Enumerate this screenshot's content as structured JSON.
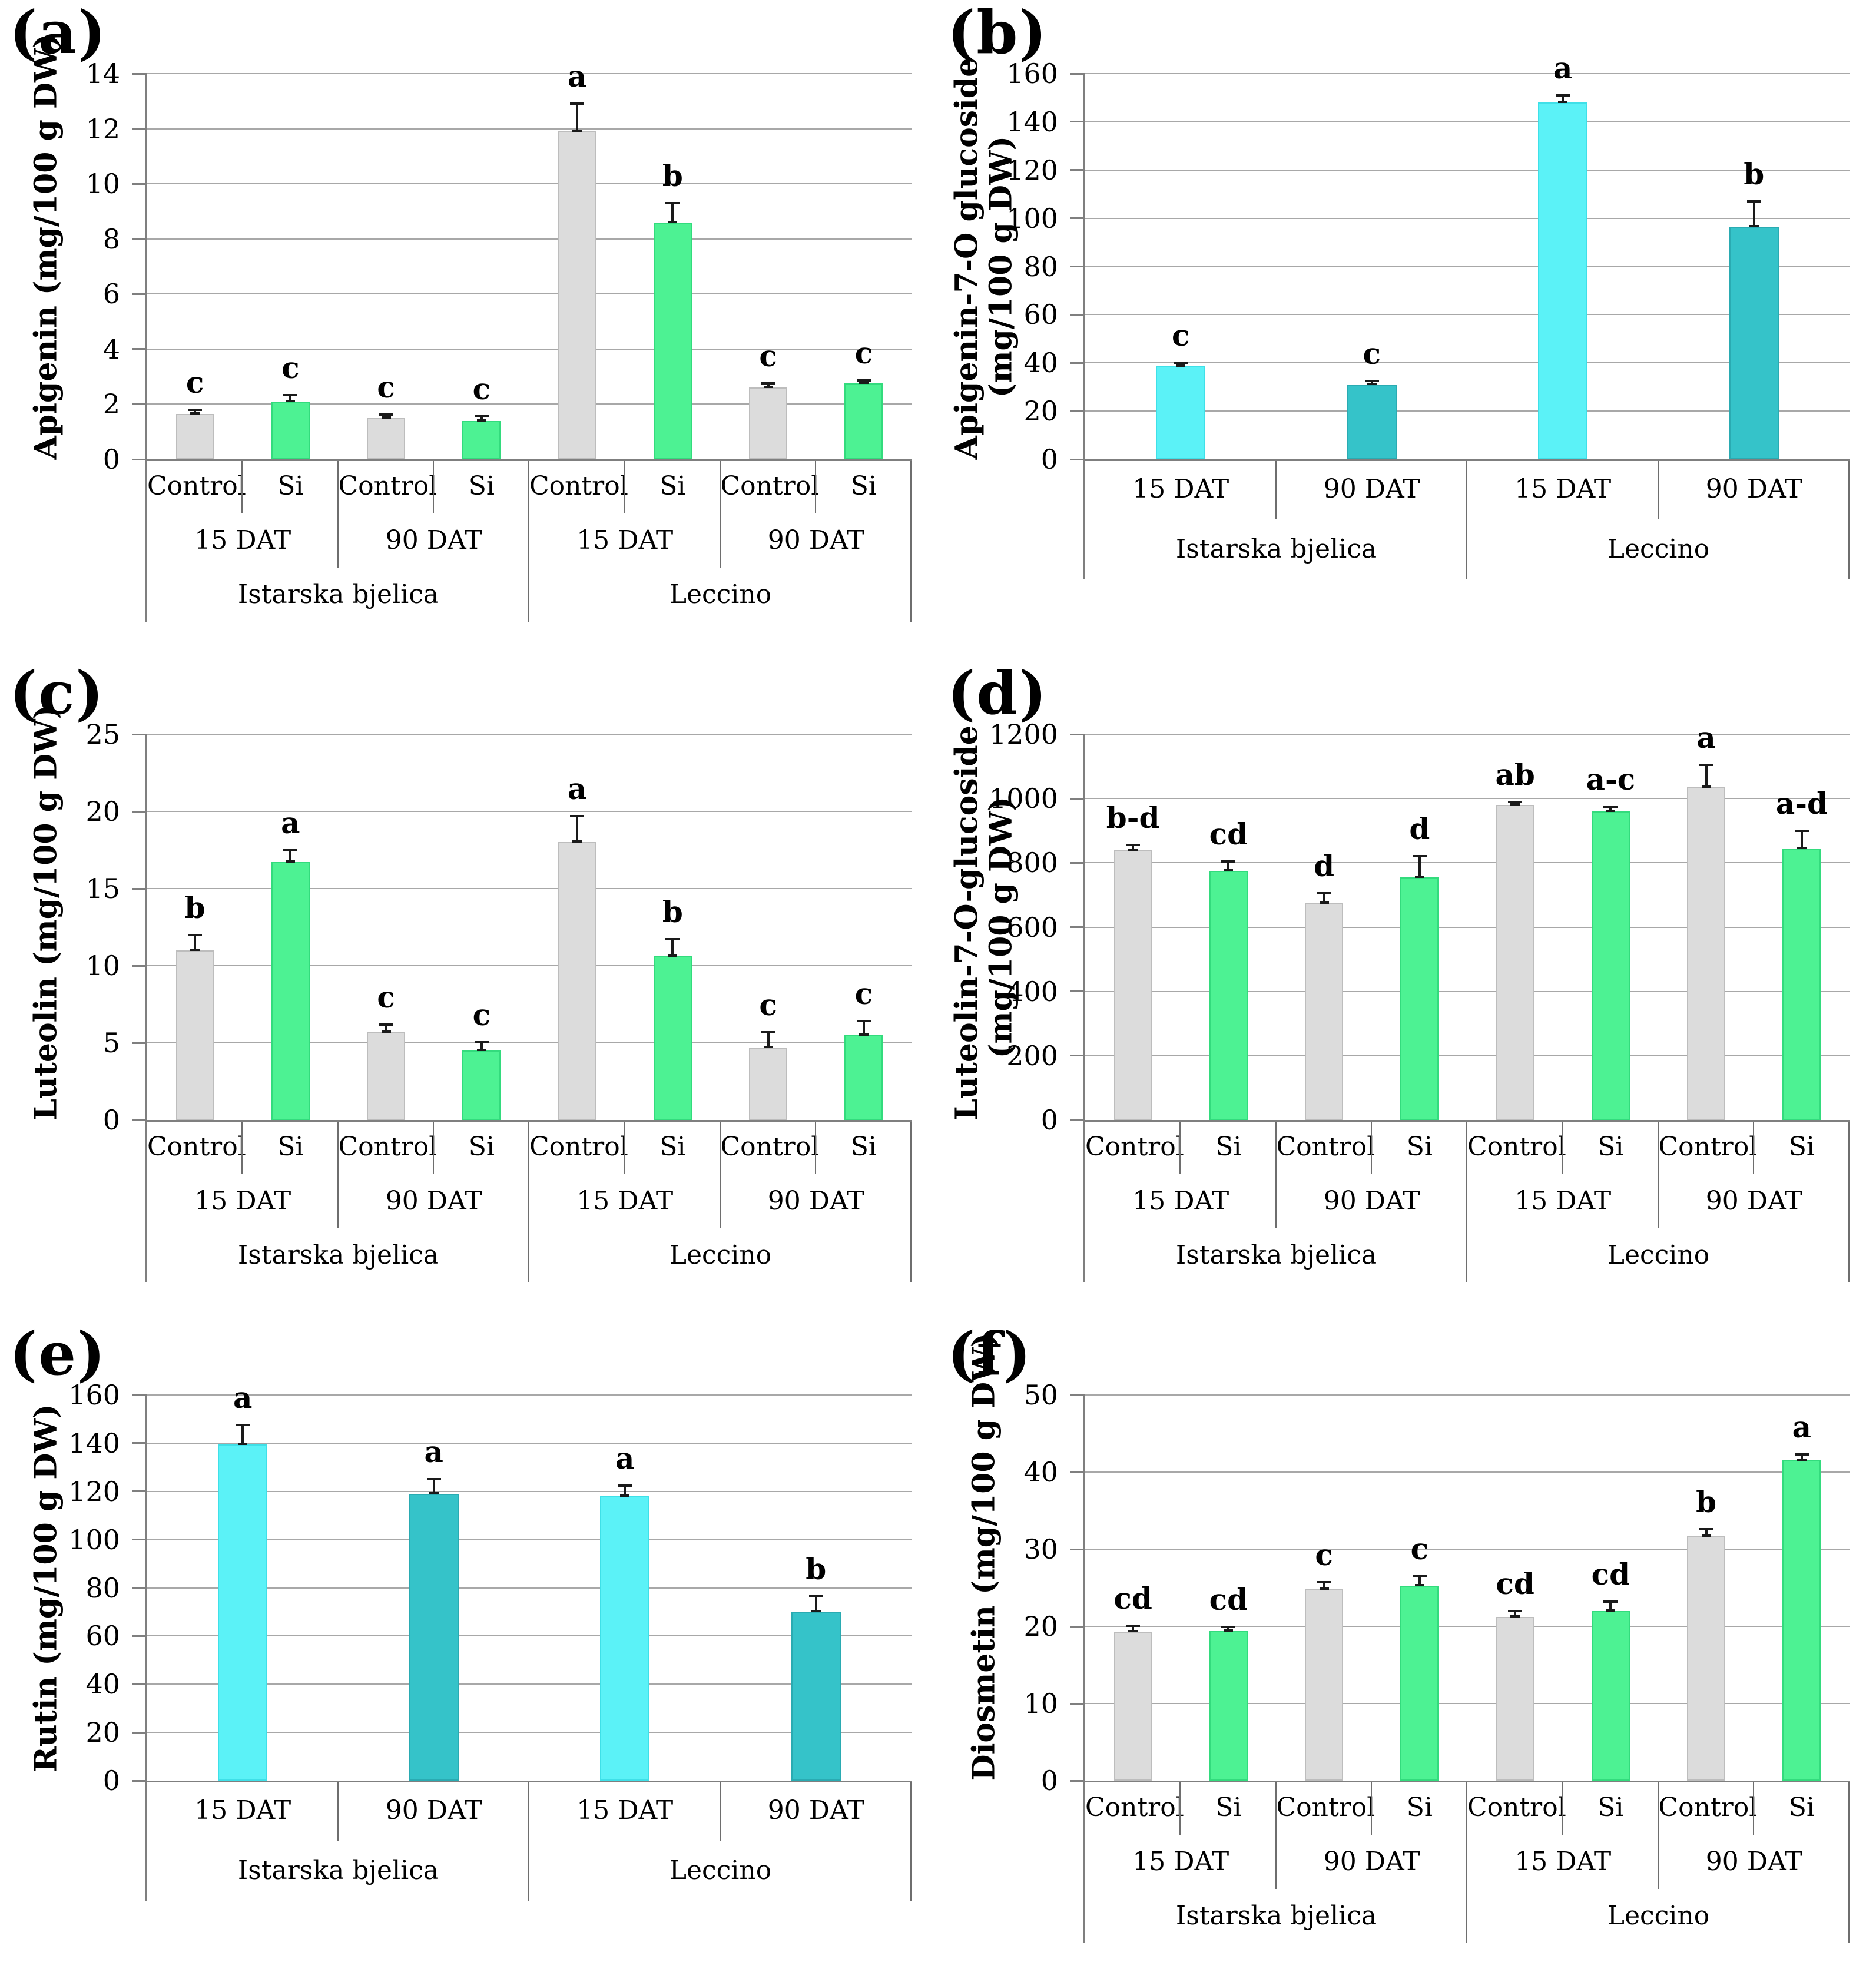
{
  "figure": {
    "background": "#ffffff",
    "panels": [
      "(a)",
      "(b)",
      "(c)",
      "(d)",
      "(e)",
      "(f)"
    ]
  },
  "colors": {
    "control": {
      "fill": "#dcdcdc",
      "border": "#bdbdbd",
      "textured": true
    },
    "si": {
      "fill": "#4df293",
      "border": "#33db7d"
    },
    "dat15": {
      "fill": "#5bf2f7",
      "border": "#3fe0e8"
    },
    "dat90": {
      "fill": "#35c3c9",
      "border": "#2aabb2"
    },
    "grid": "#a8a8a8",
    "axis": "#7f7f7f",
    "error_bar": "#1a1a1a"
  },
  "chart_data": [
    {
      "panel_label": "(a)",
      "type": "bar",
      "ylabel": "Apigenin (mg/100 g DW)",
      "ylabel_lines": [
        "Apigenin (mg/100 g DW)"
      ],
      "ylim": [
        0,
        14
      ],
      "ytick_step": 2,
      "grid": true,
      "bars": [
        {
          "cultivar": "Istarska bjelica",
          "time": "15 DAT",
          "treatment": "Control",
          "value": 1.65,
          "error": 0.15,
          "letter": "c",
          "color": "control"
        },
        {
          "cultivar": "Istarska bjelica",
          "time": "15 DAT",
          "treatment": "Si",
          "value": 2.1,
          "error": 0.22,
          "letter": "c",
          "color": "si"
        },
        {
          "cultivar": "Istarska bjelica",
          "time": "90 DAT",
          "treatment": "Control",
          "value": 1.5,
          "error": 0.12,
          "letter": "c",
          "color": "control"
        },
        {
          "cultivar": "Istarska bjelica",
          "time": "90 DAT",
          "treatment": "Si",
          "value": 1.4,
          "error": 0.15,
          "letter": "c",
          "color": "si"
        },
        {
          "cultivar": "Leccino",
          "time": "15 DAT",
          "treatment": "Control",
          "value": 11.9,
          "error": 1.0,
          "letter": "a",
          "color": "control"
        },
        {
          "cultivar": "Leccino",
          "time": "15 DAT",
          "treatment": "Si",
          "value": 8.6,
          "error": 0.7,
          "letter": "b",
          "color": "si"
        },
        {
          "cultivar": "Leccino",
          "time": "90 DAT",
          "treatment": "Control",
          "value": 2.6,
          "error": 0.15,
          "letter": "c",
          "color": "control"
        },
        {
          "cultivar": "Leccino",
          "time": "90 DAT",
          "treatment": "Si",
          "value": 2.75,
          "error": 0.12,
          "letter": "c",
          "color": "si"
        }
      ],
      "tiers": [
        {
          "span": 1,
          "labels": [
            "Control",
            "Si",
            "Control",
            "Si",
            "Control",
            "Si",
            "Control",
            "Si"
          ]
        },
        {
          "span": 2,
          "labels": [
            "15 DAT",
            "90 DAT",
            "15 DAT",
            "90 DAT"
          ]
        },
        {
          "span": 4,
          "labels": [
            "Istarska bjelica",
            "Leccino"
          ]
        }
      ]
    },
    {
      "panel_label": "(b)",
      "type": "bar",
      "ylabel": "Apigenin-7-O glucoside (mg/100 g DW)",
      "ylabel_lines": [
        "Apigenin-7-O glucoside",
        "(mg/100 g DW)"
      ],
      "ylim": [
        0,
        160
      ],
      "ytick_step": 20,
      "grid": true,
      "bars": [
        {
          "cultivar": "Istarska bjelica",
          "time": "15 DAT",
          "value": 38.5,
          "error": 1.5,
          "letter": "c",
          "color": "dat15"
        },
        {
          "cultivar": "Istarska bjelica",
          "time": "90 DAT",
          "value": 31,
          "error": 1.5,
          "letter": "c",
          "color": "dat90"
        },
        {
          "cultivar": "Leccino",
          "time": "15 DAT",
          "value": 148,
          "error": 3,
          "letter": "a",
          "color": "dat15"
        },
        {
          "cultivar": "Leccino",
          "time": "90 DAT",
          "value": 96.5,
          "error": 10.5,
          "letter": "b",
          "color": "dat90"
        }
      ],
      "tiers": [
        {
          "span": 1,
          "labels": [
            "15 DAT",
            "90 DAT",
            "15 DAT",
            "90 DAT"
          ]
        },
        {
          "span": 2,
          "labels": [
            "Istarska bjelica",
            "Leccino"
          ]
        }
      ]
    },
    {
      "panel_label": "(c)",
      "type": "bar",
      "ylabel": "Luteolin (mg/100 g DW)",
      "ylabel_lines": [
        "Luteolin (mg/100 g DW)"
      ],
      "ylim": [
        0,
        25
      ],
      "ytick_step": 5,
      "grid": true,
      "bars": [
        {
          "cultivar": "Istarska bjelica",
          "time": "15 DAT",
          "treatment": "Control",
          "value": 11.0,
          "error": 1.0,
          "letter": "b",
          "color": "control"
        },
        {
          "cultivar": "Istarska bjelica",
          "time": "15 DAT",
          "treatment": "Si",
          "value": 16.7,
          "error": 0.8,
          "letter": "a",
          "color": "si"
        },
        {
          "cultivar": "Istarska bjelica",
          "time": "90 DAT",
          "treatment": "Control",
          "value": 5.7,
          "error": 0.5,
          "letter": "c",
          "color": "control"
        },
        {
          "cultivar": "Istarska bjelica",
          "time": "90 DAT",
          "treatment": "Si",
          "value": 4.5,
          "error": 0.55,
          "letter": "c",
          "color": "si"
        },
        {
          "cultivar": "Leccino",
          "time": "15 DAT",
          "treatment": "Control",
          "value": 18.0,
          "error": 1.7,
          "letter": "a",
          "color": "control"
        },
        {
          "cultivar": "Leccino",
          "time": "15 DAT",
          "treatment": "Si",
          "value": 10.6,
          "error": 1.1,
          "letter": "b",
          "color": "si"
        },
        {
          "cultivar": "Leccino",
          "time": "90 DAT",
          "treatment": "Control",
          "value": 4.7,
          "error": 1.0,
          "letter": "c",
          "color": "control"
        },
        {
          "cultivar": "Leccino",
          "time": "90 DAT",
          "treatment": "Si",
          "value": 5.5,
          "error": 0.9,
          "letter": "c",
          "color": "si"
        }
      ],
      "tiers": [
        {
          "span": 1,
          "labels": [
            "Control",
            "Si",
            "Control",
            "Si",
            "Control",
            "Si",
            "Control",
            "Si"
          ]
        },
        {
          "span": 2,
          "labels": [
            "15 DAT",
            "90 DAT",
            "15 DAT",
            "90 DAT"
          ]
        },
        {
          "span": 4,
          "labels": [
            "Istarska bjelica",
            "Leccino"
          ]
        }
      ]
    },
    {
      "panel_label": "(d)",
      "type": "bar",
      "ylabel": "Luteolin-7-O-glucoside (mg/100 g DW)",
      "ylabel_lines": [
        "Luteolin-7-O-glucoside",
        "(mg/100 g DW)"
      ],
      "ylim": [
        0,
        1200
      ],
      "ytick_step": 200,
      "grid": true,
      "bars": [
        {
          "cultivar": "Istarska bjelica",
          "time": "15 DAT",
          "treatment": "Control",
          "value": 840,
          "error": 15,
          "letter": "b-d",
          "color": "control"
        },
        {
          "cultivar": "Istarska bjelica",
          "time": "15 DAT",
          "treatment": "Si",
          "value": 775,
          "error": 30,
          "letter": "cd",
          "color": "si"
        },
        {
          "cultivar": "Istarska bjelica",
          "time": "90 DAT",
          "treatment": "Control",
          "value": 675,
          "error": 30,
          "letter": "d",
          "color": "control"
        },
        {
          "cultivar": "Istarska bjelica",
          "time": "90 DAT",
          "treatment": "Si",
          "value": 755,
          "error": 65,
          "letter": "d",
          "color": "si"
        },
        {
          "cultivar": "Leccino",
          "time": "15 DAT",
          "treatment": "Control",
          "value": 980,
          "error": 10,
          "letter": "ab",
          "color": "control"
        },
        {
          "cultivar": "Leccino",
          "time": "15 DAT",
          "treatment": "Si",
          "value": 960,
          "error": 15,
          "letter": "a-c",
          "color": "si"
        },
        {
          "cultivar": "Leccino",
          "time": "90 DAT",
          "treatment": "Control",
          "value": 1035,
          "error": 70,
          "letter": "a",
          "color": "control"
        },
        {
          "cultivar": "Leccino",
          "time": "90 DAT",
          "treatment": "Si",
          "value": 845,
          "error": 55,
          "letter": "a-d",
          "color": "si"
        }
      ],
      "tiers": [
        {
          "span": 1,
          "labels": [
            "Control",
            "Si",
            "Control",
            "Si",
            "Control",
            "Si",
            "Control",
            "Si"
          ]
        },
        {
          "span": 2,
          "labels": [
            "15 DAT",
            "90 DAT",
            "15 DAT",
            "90 DAT"
          ]
        },
        {
          "span": 4,
          "labels": [
            "Istarska bjelica",
            "Leccino"
          ]
        }
      ]
    },
    {
      "panel_label": "(e)",
      "type": "bar",
      "ylabel": "Rutin (mg/100 g DW)",
      "ylabel_lines": [
        "Rutin (mg/100 g DW)"
      ],
      "ylim": [
        0,
        160
      ],
      "ytick_step": 20,
      "grid": true,
      "bars": [
        {
          "cultivar": "Istarska bjelica",
          "time": "15 DAT",
          "value": 139.5,
          "error": 8,
          "letter": "a",
          "color": "dat15"
        },
        {
          "cultivar": "Istarska bjelica",
          "time": "90 DAT",
          "value": 119,
          "error": 6,
          "letter": "a",
          "color": "dat90"
        },
        {
          "cultivar": "Leccino",
          "time": "15 DAT",
          "value": 118,
          "error": 4.5,
          "letter": "a",
          "color": "dat15"
        },
        {
          "cultivar": "Leccino",
          "time": "90 DAT",
          "value": 70,
          "error": 6.5,
          "letter": "b",
          "color": "dat90"
        }
      ],
      "tiers": [
        {
          "span": 1,
          "labels": [
            "15 DAT",
            "90 DAT",
            "15 DAT",
            "90 DAT"
          ]
        },
        {
          "span": 2,
          "labels": [
            "Istarska bjelica",
            "Leccino"
          ]
        }
      ]
    },
    {
      "panel_label": "(f)",
      "type": "bar",
      "ylabel": "Diosmetin (mg/100 g DW)",
      "ylabel_lines": [
        "Diosmetin (mg/100 g DW)"
      ],
      "ylim": [
        0,
        50
      ],
      "ytick_step": 10,
      "grid": true,
      "bars": [
        {
          "cultivar": "Istarska bjelica",
          "time": "15 DAT",
          "treatment": "Control",
          "value": 19.3,
          "error": 0.8,
          "letter": "cd",
          "color": "control"
        },
        {
          "cultivar": "Istarska bjelica",
          "time": "15 DAT",
          "treatment": "Si",
          "value": 19.4,
          "error": 0.5,
          "letter": "cd",
          "color": "si"
        },
        {
          "cultivar": "Istarska bjelica",
          "time": "90 DAT",
          "treatment": "Control",
          "value": 24.8,
          "error": 0.9,
          "letter": "c",
          "color": "control"
        },
        {
          "cultivar": "Istarska bjelica",
          "time": "90 DAT",
          "treatment": "Si",
          "value": 25.3,
          "error": 1.2,
          "letter": "c",
          "color": "si"
        },
        {
          "cultivar": "Leccino",
          "time": "15 DAT",
          "treatment": "Control",
          "value": 21.2,
          "error": 0.8,
          "letter": "cd",
          "color": "control"
        },
        {
          "cultivar": "Leccino",
          "time": "15 DAT",
          "treatment": "Si",
          "value": 22.0,
          "error": 1.2,
          "letter": "cd",
          "color": "si"
        },
        {
          "cultivar": "Leccino",
          "time": "90 DAT",
          "treatment": "Control",
          "value": 31.7,
          "error": 0.9,
          "letter": "b",
          "color": "control"
        },
        {
          "cultivar": "Leccino",
          "time": "90 DAT",
          "treatment": "Si",
          "value": 41.5,
          "error": 0.8,
          "letter": "a",
          "color": "si"
        }
      ],
      "tiers": [
        {
          "span": 1,
          "labels": [
            "Control",
            "Si",
            "Control",
            "Si",
            "Control",
            "Si",
            "Control",
            "Si"
          ]
        },
        {
          "span": 2,
          "labels": [
            "15 DAT",
            "90 DAT",
            "15 DAT",
            "90 DAT"
          ]
        },
        {
          "span": 4,
          "labels": [
            "Istarska bjelica",
            "Leccino"
          ]
        }
      ]
    }
  ]
}
